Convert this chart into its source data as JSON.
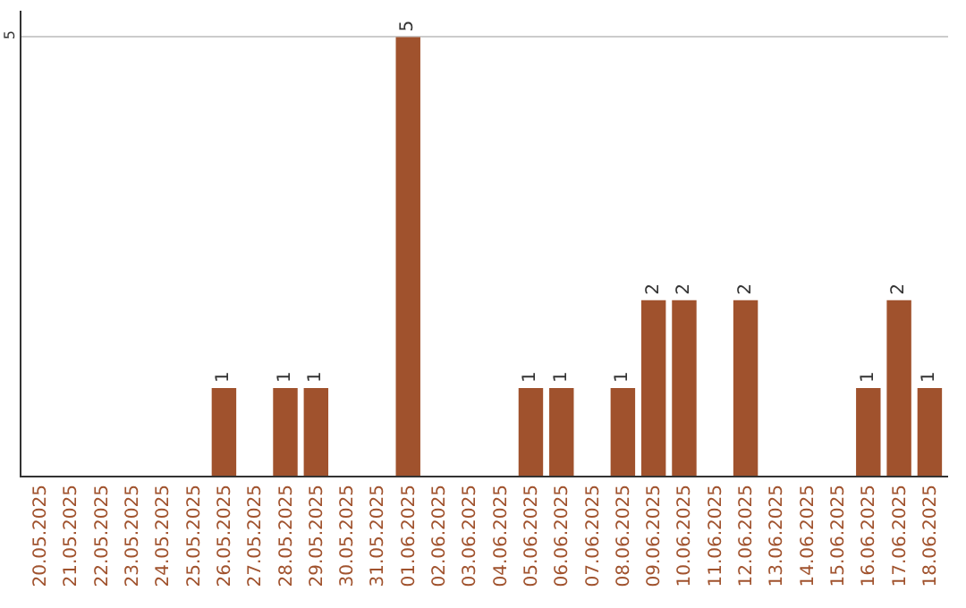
{
  "chart_data": {
    "type": "bar",
    "categories": [
      "20.05.2025",
      "21.05.2025",
      "22.05.2025",
      "23.05.2025",
      "24.05.2025",
      "25.05.2025",
      "26.05.2025",
      "27.05.2025",
      "28.05.2025",
      "29.05.2025",
      "30.05.2025",
      "31.05.2025",
      "01.06.2025",
      "02.06.2025",
      "03.06.2025",
      "04.06.2025",
      "05.06.2025",
      "06.06.2025",
      "07.06.2025",
      "08.06.2025",
      "09.06.2025",
      "10.06.2025",
      "11.06.2025",
      "12.06.2025",
      "13.06.2025",
      "14.06.2025",
      "15.06.2025",
      "16.06.2025",
      "17.06.2025",
      "18.06.2025"
    ],
    "values": [
      0,
      0,
      0,
      0,
      0,
      0,
      1,
      0,
      1,
      1,
      0,
      0,
      5,
      0,
      0,
      0,
      1,
      1,
      0,
      1,
      2,
      2,
      0,
      2,
      0,
      0,
      0,
      1,
      2,
      1
    ],
    "value_labels": [
      null,
      null,
      null,
      null,
      null,
      null,
      "1",
      null,
      "1",
      "1",
      null,
      null,
      "5",
      null,
      null,
      null,
      "1",
      "1",
      null,
      "1",
      "2",
      "2",
      null,
      "2",
      null,
      null,
      null,
      "1",
      "2",
      "1"
    ],
    "color": "#a0522d",
    "ylim": [
      0,
      5.3
    ],
    "yticks": [
      5
    ],
    "grid": "y"
  }
}
